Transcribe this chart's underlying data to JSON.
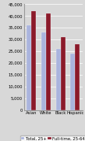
{
  "categories": [
    "Asian",
    "White",
    "Black",
    "Hispanic"
  ],
  "series": [
    {
      "label": "Total, 25+",
      "color": "#aab4dd",
      "values": [
        36000,
        33000,
        26000,
        24000
      ]
    },
    {
      "label": "Full-time, 25-64",
      "color": "#8b1a2a",
      "values": [
        42000,
        41000,
        31000,
        28000
      ]
    }
  ],
  "ylim": [
    0,
    45000
  ],
  "yticks": [
    0,
    5000,
    10000,
    15000,
    20000,
    25000,
    30000,
    35000,
    40000,
    45000
  ],
  "ytick_labels": [
    "0",
    "5,000",
    "10,000",
    "15,000",
    "20,000",
    "25,000",
    "30,000",
    "35,000",
    "40,000",
    "45,000"
  ],
  "background_color": "#d8d8d8",
  "plot_bg_color": "#d8d8d8",
  "bar_width": 0.32,
  "legend_fontsize": 3.8,
  "tick_fontsize": 3.8,
  "grid_color": "#ffffff"
}
